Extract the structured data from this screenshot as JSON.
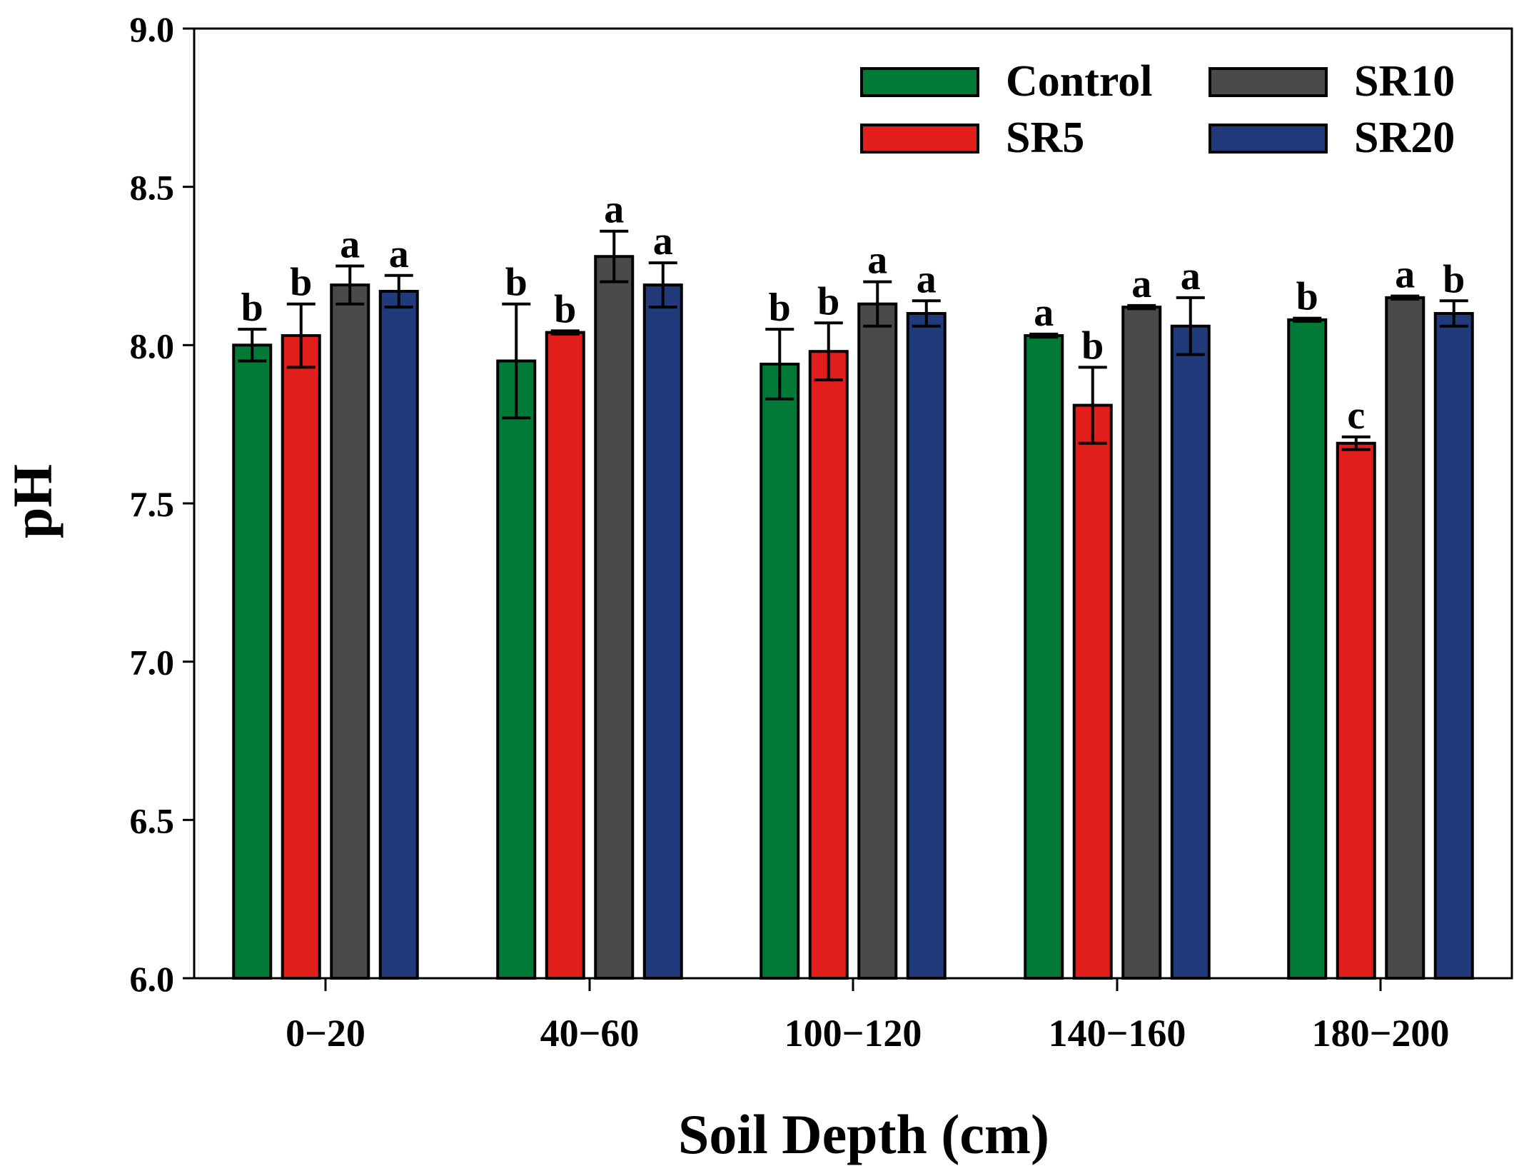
{
  "chart_data": {
    "type": "bar",
    "title": "",
    "xlabel": "Soil Depth (cm)",
    "ylabel": "pH",
    "ylim": [
      6.0,
      9.0
    ],
    "yticks": [
      "6.0",
      "6.5",
      "7.0",
      "7.5",
      "8.0",
      "8.5",
      "9.0"
    ],
    "ytick_values": [
      6.0,
      6.5,
      7.0,
      7.5,
      8.0,
      8.5,
      9.0
    ],
    "grid": false,
    "legend_position": "top-right",
    "categories": [
      "0−20",
      "40−60",
      "100−120",
      "140−160",
      "180−200"
    ],
    "series": [
      {
        "name": "Control",
        "color": "#007a36",
        "values": [
          8.0,
          7.95,
          7.94,
          8.03,
          8.08
        ],
        "errors": [
          0.05,
          0.18,
          0.11,
          0.005,
          0.005
        ],
        "letters": [
          "b",
          "b",
          "b",
          "a",
          "b"
        ]
      },
      {
        "name": "SR5",
        "color": "#e11e1b",
        "values": [
          8.03,
          8.04,
          7.98,
          7.81,
          7.69
        ],
        "errors": [
          0.1,
          0.005,
          0.09,
          0.12,
          0.02
        ],
        "letters": [
          "b",
          "b",
          "b",
          "b",
          "c"
        ]
      },
      {
        "name": "SR10",
        "color": "#4a4a4a",
        "values": [
          8.19,
          8.28,
          8.13,
          8.12,
          8.15
        ],
        "errors": [
          0.06,
          0.08,
          0.07,
          0.005,
          0.005
        ],
        "letters": [
          "a",
          "a",
          "a",
          "a",
          "a"
        ]
      },
      {
        "name": "SR20",
        "color": "#213b7a",
        "values": [
          8.17,
          8.19,
          8.1,
          8.06,
          8.1
        ],
        "errors": [
          0.05,
          0.07,
          0.04,
          0.09,
          0.04
        ],
        "letters": [
          "a",
          "a",
          "a",
          "a",
          "b"
        ]
      }
    ]
  }
}
